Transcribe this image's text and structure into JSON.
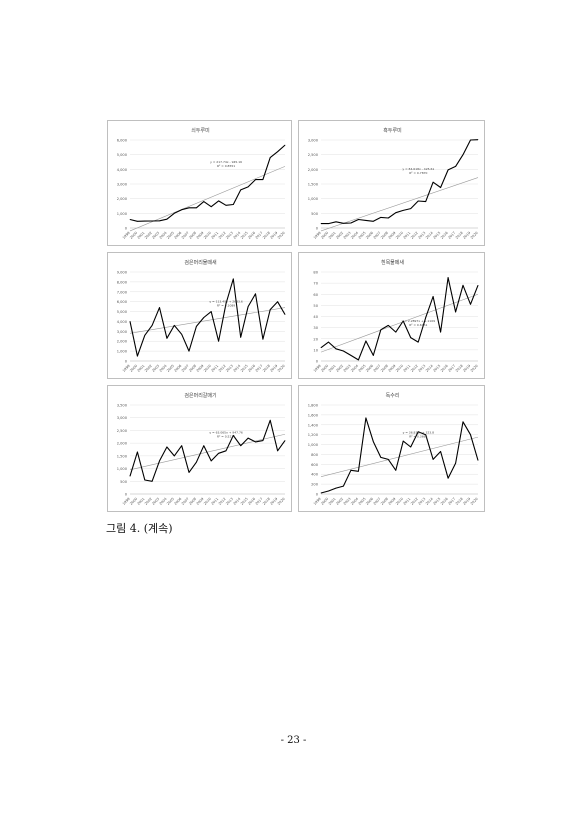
{
  "figure": {
    "caption": "그림 4. (계속)",
    "page_number": "- 23 -"
  },
  "chart_data": [
    {
      "type": "line",
      "title": "쇠두루미",
      "x": [
        1999,
        2000,
        2001,
        2002,
        2003,
        2004,
        2005,
        2006,
        2007,
        2008,
        2009,
        2010,
        2011,
        2012,
        2013,
        2014,
        2015,
        2016,
        2017,
        2018,
        2019,
        2020
      ],
      "values": [
        580,
        460,
        470,
        480,
        490,
        600,
        1000,
        1250,
        1380,
        1380,
        1800,
        1450,
        1850,
        1550,
        1600,
        2600,
        2800,
        3300,
        3300,
        4800,
        5200,
        5650
      ],
      "ylim": [
        0,
        6000
      ],
      "yticks": [
        "0",
        "1,000",
        "2,000",
        "3,000",
        "4,000",
        "5,000",
        "6,000"
      ],
      "trend": [
        -200,
        4200
      ],
      "equation": [
        "y = 217.74x - 945.16",
        "R² = 0.8551"
      ]
    },
    {
      "type": "line",
      "title": "흑두루미",
      "x": [
        1999,
        2000,
        2001,
        2002,
        2003,
        2004,
        2005,
        2006,
        2007,
        2008,
        2009,
        2010,
        2011,
        2012,
        2013,
        2014,
        2015,
        2016,
        2017,
        2018,
        2019,
        2020
      ],
      "values": [
        150,
        150,
        210,
        160,
        170,
        290,
        260,
        230,
        360,
        340,
        520,
        600,
        660,
        920,
        900,
        1560,
        1380,
        1980,
        2100,
        2500,
        3000,
        3010
      ],
      "ylim": [
        0,
        3000
      ],
      "yticks": [
        "0",
        "500",
        "1,000",
        "1,500",
        "2,000",
        "2,500",
        "3,000"
      ],
      "trend": [
        -100,
        1720
      ],
      "equation": [
        "y = 84.618x - 425.61",
        "R² = 0.7870"
      ]
    },
    {
      "type": "line",
      "title": "검은머리물떼새",
      "x": [
        1999,
        2000,
        2001,
        2002,
        2003,
        2004,
        2005,
        2006,
        2007,
        2008,
        2009,
        2010,
        2011,
        2012,
        2013,
        2014,
        2015,
        2016,
        2017,
        2018,
        2019,
        2020
      ],
      "values": [
        4000,
        500,
        2600,
        3600,
        5400,
        2300,
        3600,
        2700,
        1000,
        3500,
        4400,
        5000,
        2000,
        5800,
        8300,
        2400,
        5500,
        6800,
        2200,
        5200,
        6000,
        4700
      ],
      "ylim": [
        0,
        9000
      ],
      "yticks": [
        "0",
        "1,000",
        "2,000",
        "3,000",
        "4,000",
        "5,000",
        "6,000",
        "7,000",
        "8,000",
        "9,000"
      ],
      "trend": [
        2800,
        5400
      ],
      "equation": [
        "y = 113.49x + 2633.6",
        "R² = 0.1089"
      ]
    },
    {
      "type": "line",
      "title": "흰목물떼새",
      "x": [
        1999,
        2000,
        2001,
        2002,
        2003,
        2004,
        2005,
        2006,
        2007,
        2008,
        2009,
        2010,
        2011,
        2012,
        2013,
        2014,
        2015,
        2016,
        2017,
        2018,
        2019,
        2020
      ],
      "values": [
        12,
        17,
        11,
        9,
        5,
        1,
        18,
        5,
        28,
        32,
        26,
        36,
        21,
        17,
        39,
        58,
        26,
        75,
        44,
        68,
        51,
        68
      ],
      "ylim": [
        0,
        80
      ],
      "yticks": [
        "0",
        "10",
        "20",
        "30",
        "40",
        "50",
        "60",
        "70",
        "80"
      ],
      "trend": [
        8,
        60
      ],
      "equation": [
        "y = 2.2897x + 1.1109",
        "R² = 0.6951"
      ]
    },
    {
      "type": "line",
      "title": "검은머리갈매기",
      "x": [
        1999,
        2000,
        2001,
        2002,
        2003,
        2004,
        2005,
        2006,
        2007,
        2008,
        2009,
        2010,
        2011,
        2012,
        2013,
        2014,
        2015,
        2016,
        2017,
        2018,
        2019,
        2020
      ],
      "values": [
        700,
        1650,
        550,
        500,
        1300,
        1850,
        1500,
        1900,
        850,
        1250,
        1900,
        1300,
        1600,
        1700,
        2300,
        1900,
        2200,
        2050,
        2100,
        2900,
        1700,
        2100
      ],
      "ylim": [
        0,
        3500
      ],
      "yticks": [
        "0",
        "500",
        "1,000",
        "1,500",
        "2,000",
        "2,500",
        "3,000",
        "3,500"
      ],
      "trend": [
        950,
        2350
      ],
      "equation": [
        "y = 63.065x + 947.76",
        "R² = 0.5234"
      ]
    },
    {
      "type": "line",
      "title": "독수리",
      "x": [
        1999,
        2000,
        2001,
        2002,
        2003,
        2004,
        2005,
        2006,
        2007,
        2008,
        2009,
        2010,
        2011,
        2012,
        2013,
        2014,
        2015,
        2016,
        2017,
        2018,
        2019,
        2020
      ],
      "values": [
        20,
        60,
        120,
        160,
        480,
        460,
        1540,
        1060,
        740,
        700,
        480,
        1070,
        950,
        1260,
        1200,
        700,
        860,
        320,
        620,
        1460,
        1200,
        680
      ],
      "ylim": [
        0,
        1800
      ],
      "yticks": [
        "0",
        "200",
        "400",
        "600",
        "800",
        "1,000",
        "1,200",
        "1,400",
        "1,600",
        "1,800"
      ],
      "trend": [
        350,
        1150
      ],
      "equation": [
        "y = 36.831x + 323.8",
        "R² = 0.3665"
      ]
    }
  ]
}
